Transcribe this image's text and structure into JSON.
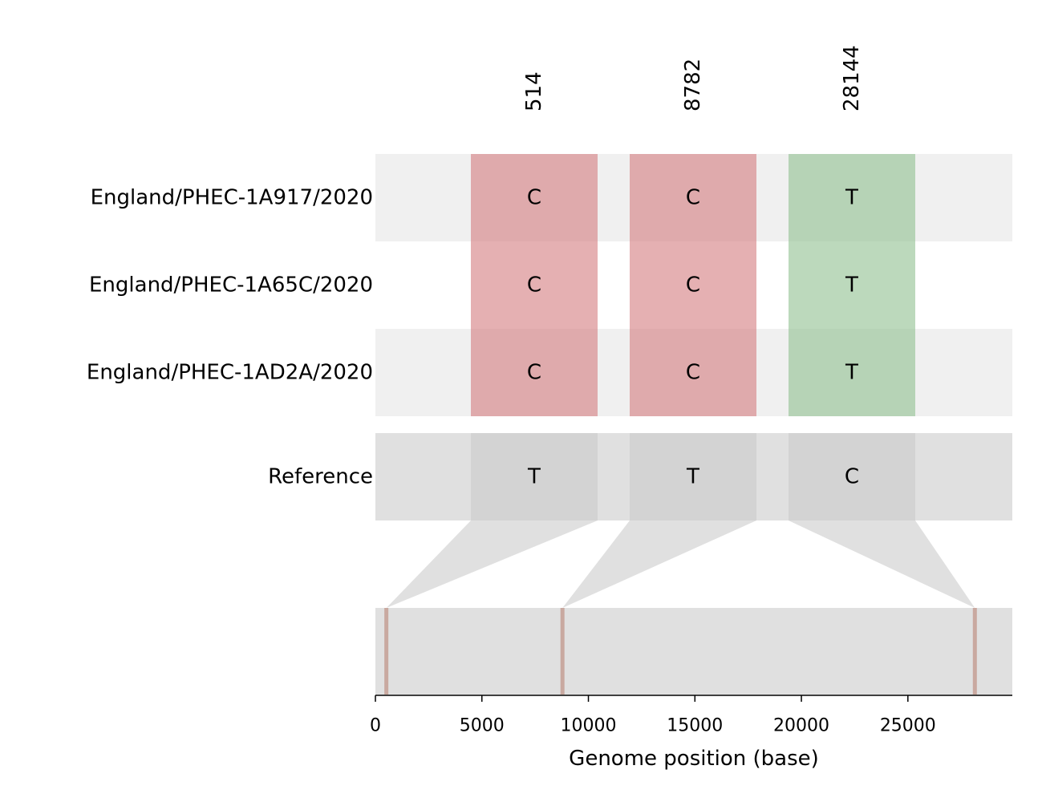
{
  "chart_data": {
    "type": "heatmap",
    "title": "",
    "xlabel": "Genome position (base)",
    "ylabel": "",
    "xlim": [
      0,
      29903
    ],
    "xticks": [
      0,
      5000,
      10000,
      15000,
      20000,
      25000
    ],
    "tick_labels": [
      "0",
      "5000",
      "10000",
      "15000",
      "20000",
      "25000"
    ],
    "positions": [
      514,
      8782,
      28144
    ],
    "position_labels": [
      "514",
      "8782",
      "28144"
    ],
    "samples": [
      {
        "name": "England/PHEC-1A917/2020",
        "bases": [
          "C",
          "C",
          "T"
        ]
      },
      {
        "name": "England/PHEC-1A65C/2020",
        "bases": [
          "C",
          "C",
          "T"
        ]
      },
      {
        "name": "England/PHEC-1AD2A/2020",
        "bases": [
          "C",
          "C",
          "T"
        ]
      }
    ],
    "reference": {
      "name": "Reference",
      "bases": [
        "T",
        "T",
        "C"
      ]
    },
    "base_colors": {
      "C": "#d47b7e",
      "T": "#8fbf8f"
    },
    "colors": {
      "row_shade": "#f0f0f0",
      "reference_bg": "#e0e0e0",
      "reference_cell": "#d3d3d3",
      "genome_track": "#e0e0e0",
      "marker": "#c9a9a0"
    },
    "grid": false
  }
}
